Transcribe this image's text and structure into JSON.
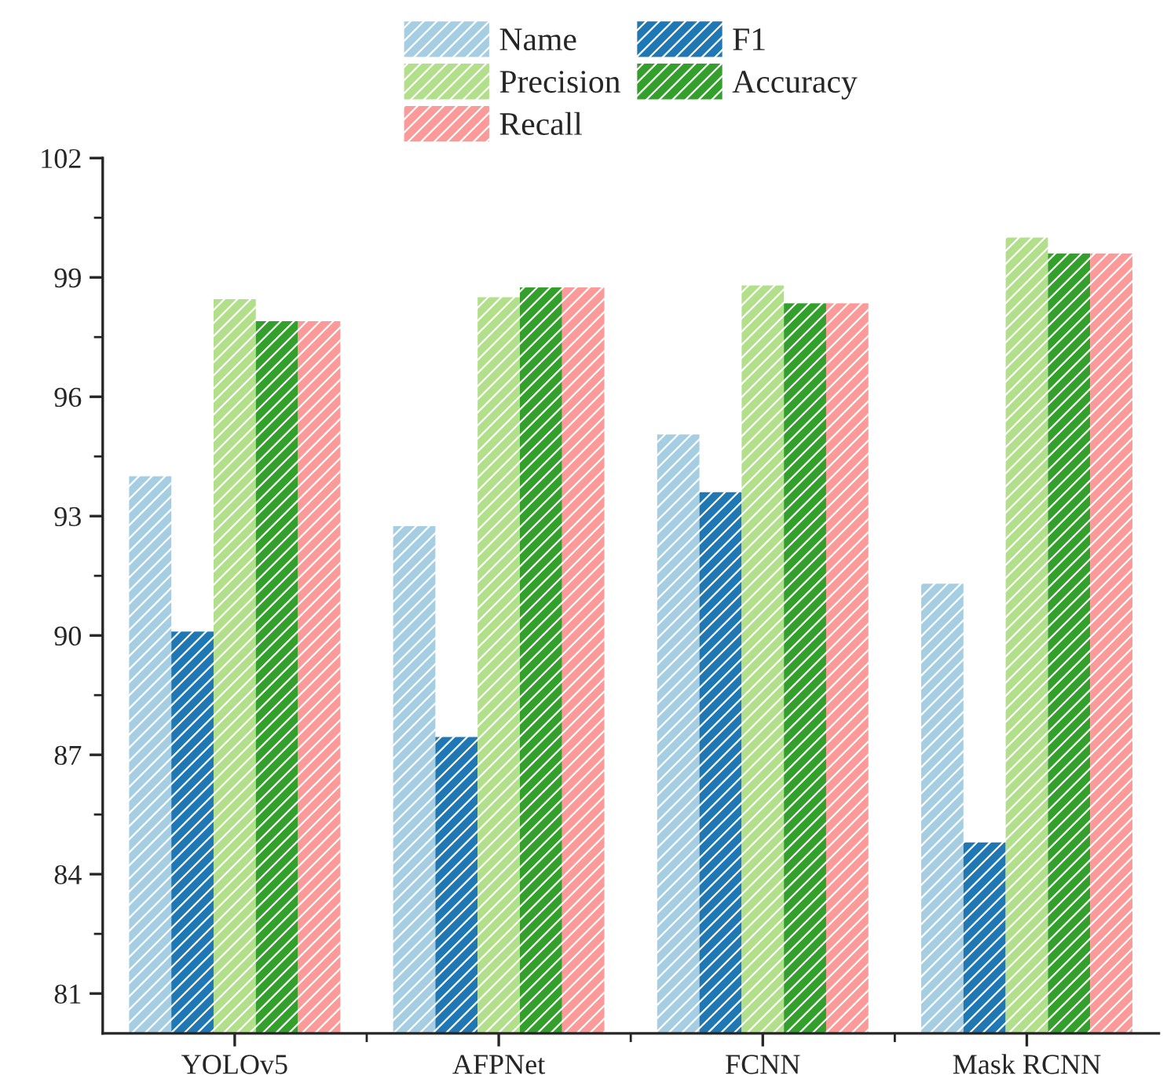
{
  "chart_data": {
    "type": "bar",
    "categories": [
      "YOLOv5",
      "AFPNet",
      "FCNN",
      "Mask RCNN"
    ],
    "series": [
      {
        "name": "Name",
        "color": "#a6cee3",
        "values": [
          94.0,
          92.75,
          95.05,
          91.3
        ]
      },
      {
        "name": "F1",
        "color": "#1f78b4",
        "values": [
          90.1,
          87.45,
          93.6,
          84.8
        ]
      },
      {
        "name": "Precision",
        "color": "#b2df8a",
        "values": [
          98.45,
          98.5,
          98.8,
          100.0
        ]
      },
      {
        "name": "Accuracy",
        "color": "#33a02c",
        "values": [
          97.9,
          98.75,
          98.35,
          99.6
        ]
      },
      {
        "name": "Recall",
        "color": "#fb9a99",
        "values": [
          97.9,
          98.75,
          98.35,
          99.6
        ]
      }
    ],
    "ylim": [
      80,
      102
    ],
    "yticks": [
      81,
      84,
      87,
      90,
      93,
      96,
      99,
      102
    ],
    "legend": "top",
    "grid": false
  }
}
